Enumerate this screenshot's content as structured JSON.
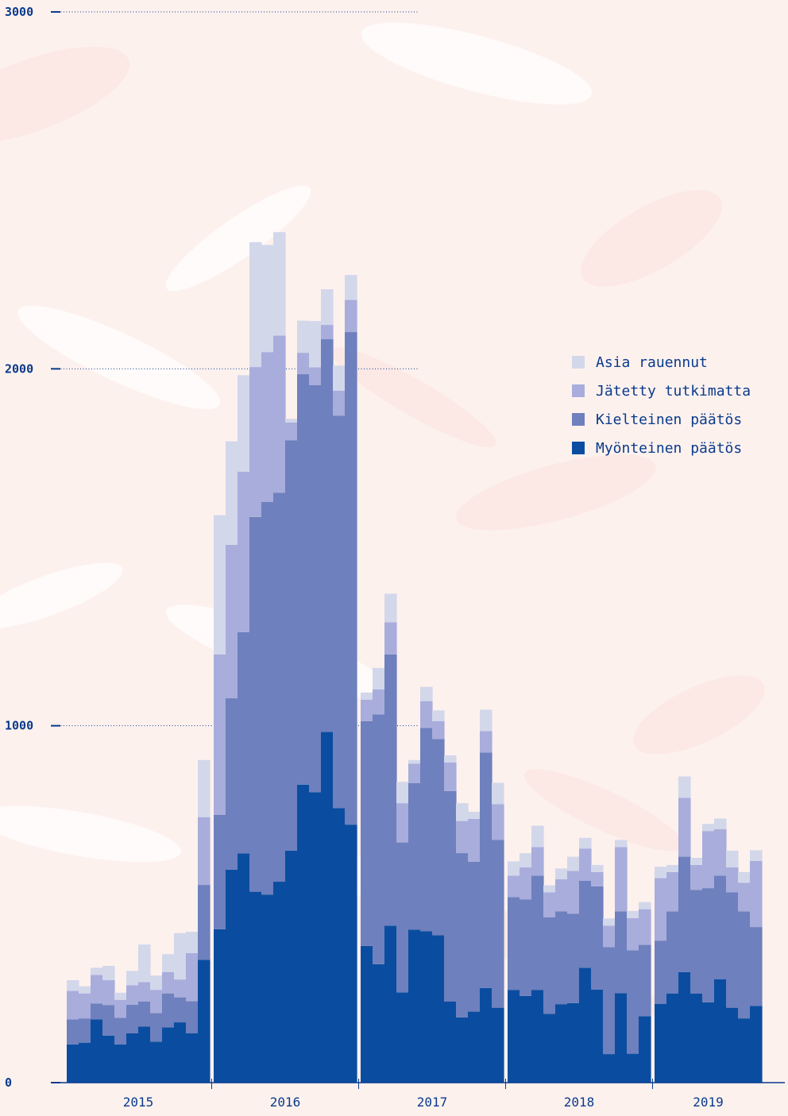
{
  "chart_data": {
    "type": "bar",
    "stacked": true,
    "grid": true,
    "legend_position": "right",
    "ylim": [
      0,
      3000
    ],
    "yticks": [
      "0",
      "1000",
      "2000",
      "3000"
    ],
    "years": [
      "2015",
      "2016",
      "2017",
      "2018",
      "2019"
    ],
    "months_per_year": [
      12,
      12,
      12,
      12,
      9
    ],
    "series": [
      {
        "name": "Myönteinen päätös",
        "color": "#0a4da0",
        "values": [
          107,
          112,
          177,
          132,
          107,
          138,
          157,
          115,
          155,
          169,
          138,
          344,
          430,
          597,
          642,
          535,
          527,
          563,
          650,
          835,
          814,
          983,
          769,
          723,
          383,
          332,
          440,
          253,
          429,
          424,
          413,
          227,
          183,
          199,
          265,
          210,
          260,
          243,
          260,
          193,
          220,
          223,
          322,
          261,
          80,
          251,
          81,
          186,
          221,
          250,
          310,
          250,
          225,
          290,
          210,
          180,
          215
        ]
      },
      {
        "name": "Kielteinen päätös",
        "color": "#6e80bd",
        "values": [
          70,
          68,
          45,
          85,
          75,
          80,
          70,
          80,
          95,
          70,
          90,
          210,
          320,
          480,
          620,
          1050,
          1100,
          1090,
          1150,
          1150,
          1140,
          1100,
          1100,
          1380,
          630,
          700,
          760,
          420,
          410,
          570,
          550,
          590,
          460,
          420,
          660,
          470,
          260,
          270,
          320,
          270,
          260,
          250,
          244,
          289,
          300,
          229,
          290,
          200,
          177,
          230,
          323,
          290,
          320,
          290,
          323,
          300,
          221
        ]
      },
      {
        "name": "Jätetty tutkimatta",
        "color": "#a8addc",
        "values": [
          80,
          70,
          80,
          70,
          50,
          55,
          55,
          65,
          60,
          50,
          135,
          190,
          450,
          430,
          450,
          420,
          420,
          440,
          50,
          60,
          50,
          40,
          70,
          90,
          60,
          70,
          90,
          110,
          55,
          75,
          50,
          80,
          90,
          120,
          60,
          100,
          60,
          90,
          80,
          70,
          90,
          120,
          90,
          40,
          60,
          180,
          90,
          100,
          175,
          110,
          165,
          70,
          160,
          130,
          70,
          80,
          185
        ]
      },
      {
        "name": "Asia rauennut",
        "color": "#d3d7ea",
        "values": [
          30,
          20,
          20,
          40,
          20,
          40,
          105,
          40,
          50,
          130,
          60,
          160,
          390,
          290,
          270,
          350,
          300,
          290,
          10,
          90,
          130,
          100,
          70,
          70,
          20,
          60,
          80,
          60,
          10,
          40,
          30,
          20,
          50,
          20,
          60,
          60,
          40,
          40,
          60,
          20,
          30,
          40,
          30,
          20,
          20,
          20,
          20,
          20,
          32,
          20,
          60,
          20,
          20,
          30,
          47,
          30,
          30
        ]
      }
    ]
  }
}
